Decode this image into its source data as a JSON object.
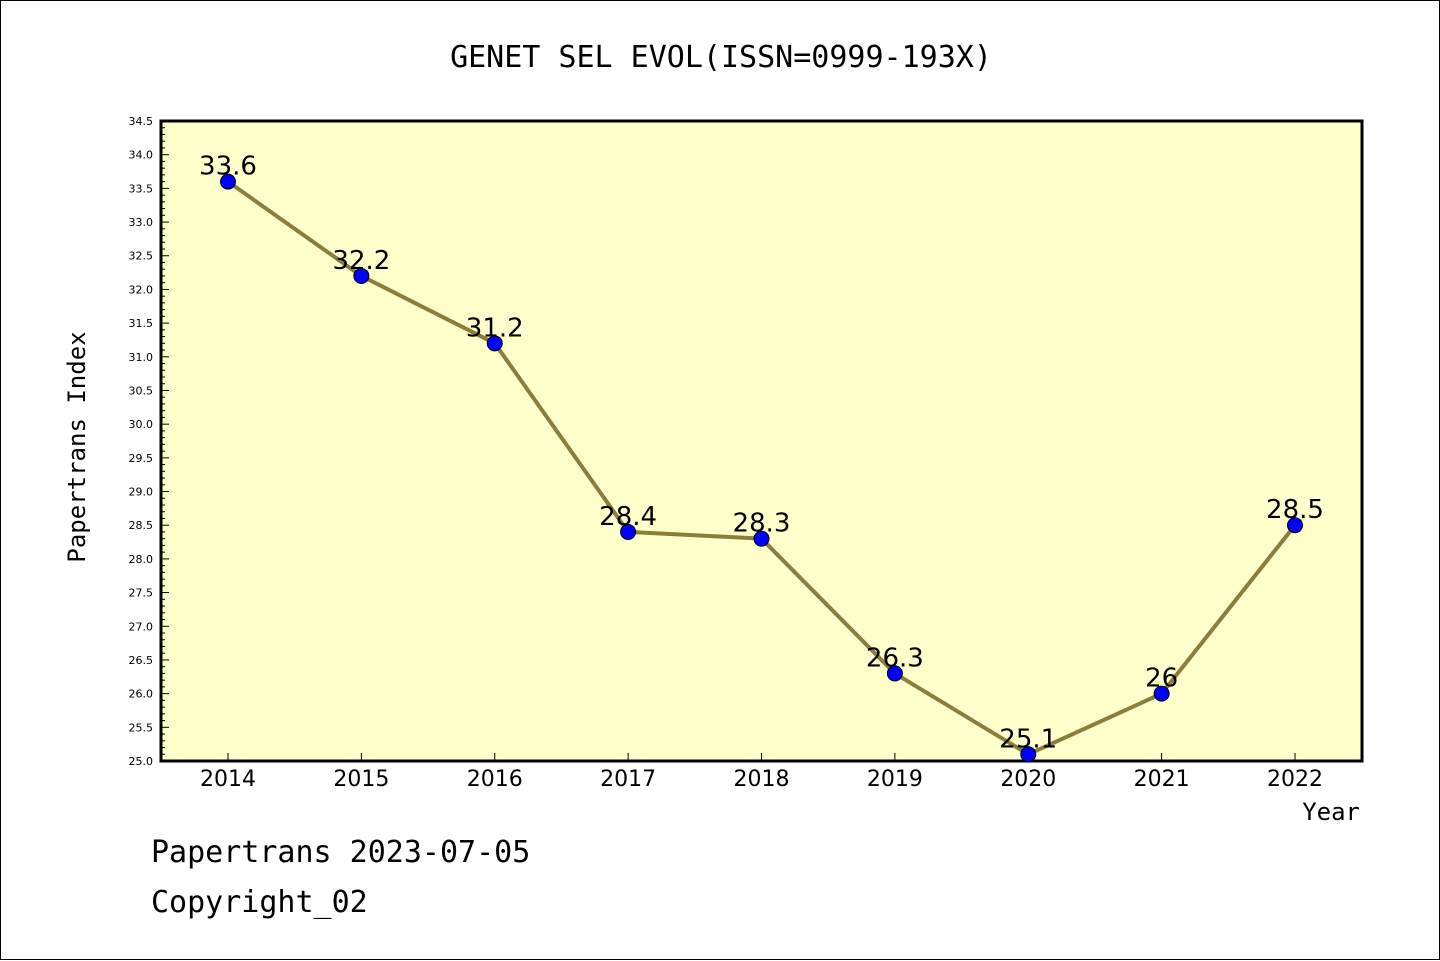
{
  "chart_data": {
    "type": "line",
    "title": "GENET SEL EVOL(ISSN=0999-193X)",
    "xlabel": "Year",
    "ylabel": "Papertrans Index",
    "categories": [
      "2014",
      "2015",
      "2016",
      "2017",
      "2018",
      "2019",
      "2020",
      "2021",
      "2022"
    ],
    "values": [
      33.6,
      32.2,
      31.2,
      28.4,
      28.3,
      26.3,
      25.1,
      26,
      28.5
    ],
    "data_labels": [
      "33.6",
      "32.2",
      "31.2",
      "28.4",
      "28.3",
      "26.3",
      "25.1",
      "26",
      "28.5"
    ],
    "ylim": [
      25.0,
      34.5
    ],
    "ytick_step": 0.5,
    "grid": false,
    "colors": {
      "plot_background": "#ffffcc",
      "line": "#8b7d3a",
      "marker": "#0000ff"
    }
  },
  "footer": {
    "line1": "Papertrans 2023-07-05",
    "line2": "Copyright_02"
  }
}
